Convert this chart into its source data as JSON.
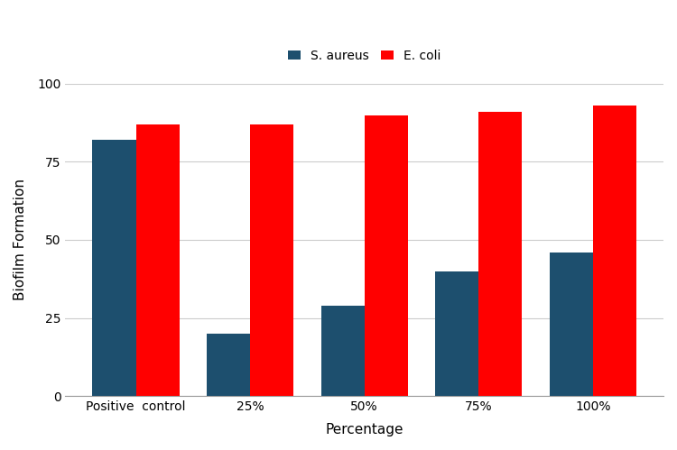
{
  "categories": [
    "Positive  control",
    "25%",
    "50%",
    "75%",
    "100%"
  ],
  "s_aureus": [
    82,
    20,
    29,
    40,
    46
  ],
  "e_coli": [
    87,
    87,
    90,
    91,
    93
  ],
  "s_aureus_color": "#1d4f6e",
  "e_coli_color": "#ff0000",
  "ylabel": "Biofilm Formation",
  "xlabel": "Percentage",
  "ylim": [
    0,
    100
  ],
  "yticks": [
    0,
    25,
    50,
    75,
    100
  ],
  "legend_labels": [
    "S. aureus",
    "E. coli"
  ],
  "bar_width": 0.38,
  "background_color": "#ffffff",
  "grid_color": "#cccccc",
  "figsize": [
    7.5,
    4.99
  ],
  "dpi": 100
}
